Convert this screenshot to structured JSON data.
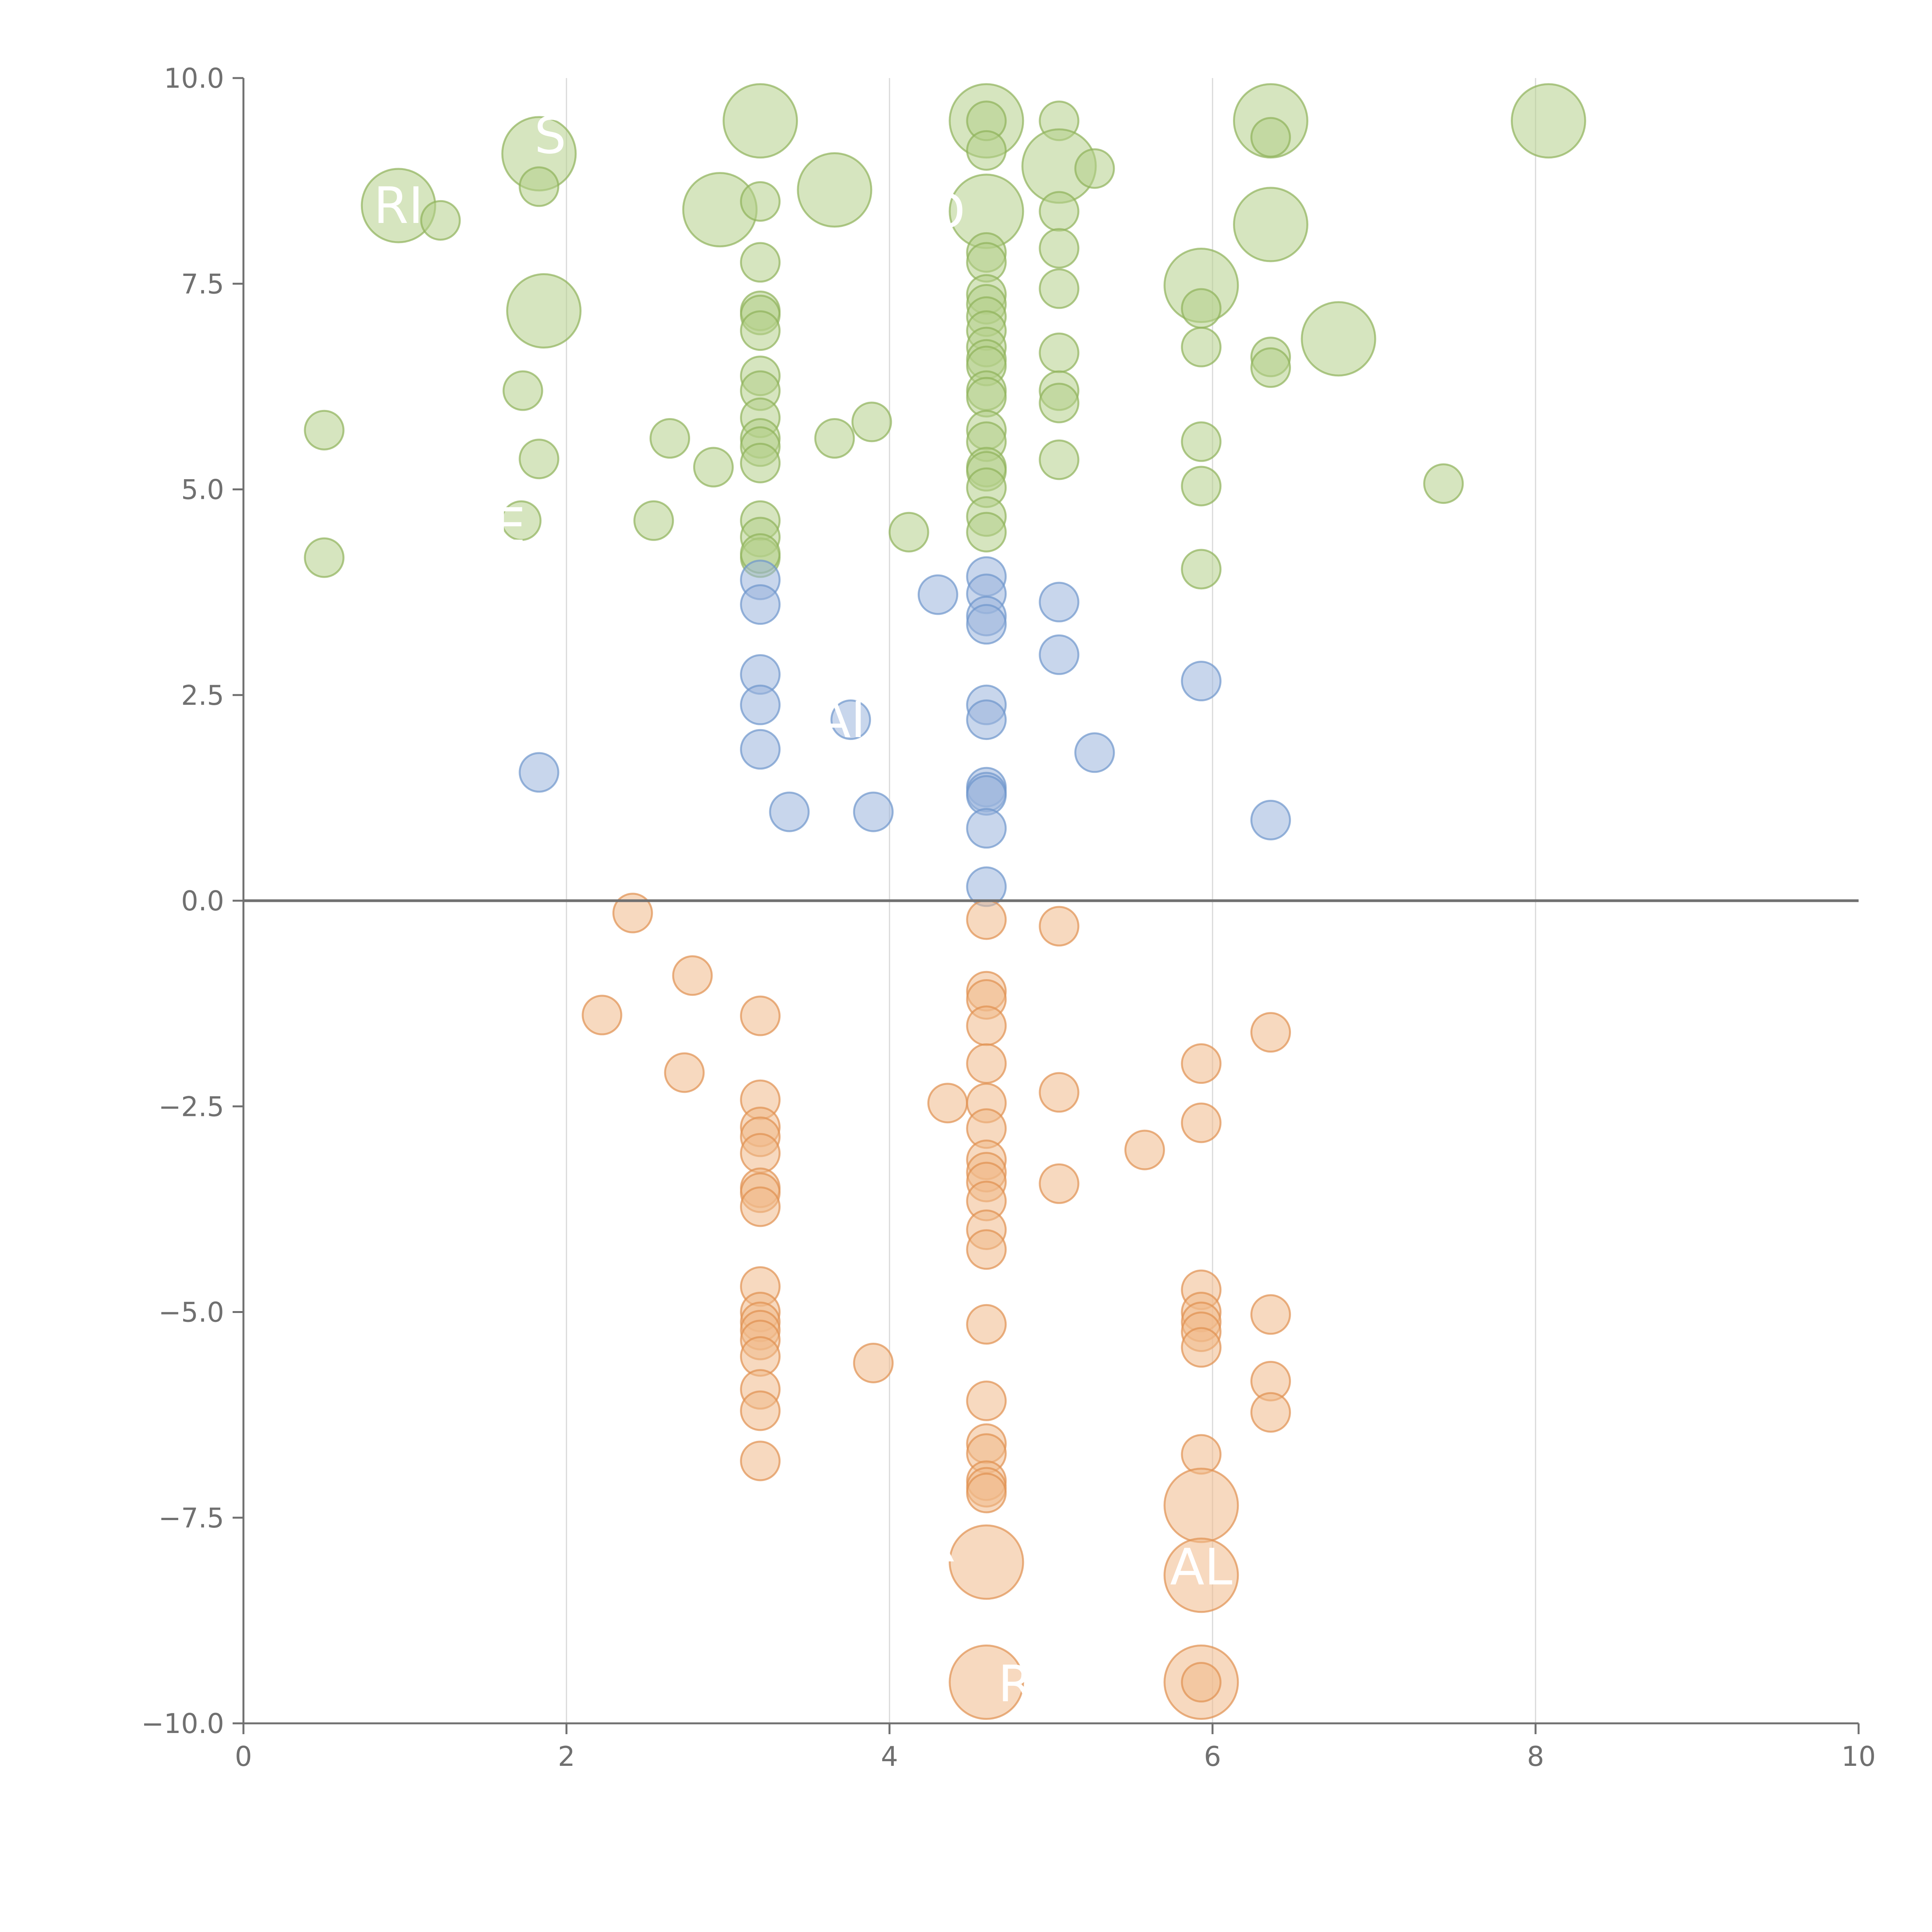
{
  "chart_data": {
    "type": "scatter",
    "title": "",
    "xlabel": "",
    "ylabel": "",
    "xlim": [
      0,
      10
    ],
    "ylim": [
      -10,
      10
    ],
    "grid": {
      "x": true,
      "y": false
    },
    "zero_line": true,
    "x_ticks": [
      "0",
      "2",
      "4",
      "6",
      "8",
      "10"
    ],
    "y_ticks": [
      "10.0",
      "7.5",
      "5.0",
      "2.5",
      "0.0",
      "−2.5",
      "−5.0",
      "−7.5",
      "−10.0"
    ],
    "x_tick_values": [
      0,
      2,
      4,
      6,
      8,
      10
    ],
    "y_tick_values": [
      10,
      7.5,
      5,
      2.5,
      0,
      -2.5,
      -5,
      -7.5,
      -10
    ],
    "colors": {
      "green_fill": "#b5cf8a",
      "green_stroke": "#8fb25a",
      "blue_fill": "#9ab5dc",
      "blue_stroke": "#6e95cc",
      "orange_fill": "#f0b98a",
      "orange_stroke": "#e09050"
    },
    "series": [
      {
        "color": "green",
        "points": [
          [
            0.96,
            8.45,
            "L"
          ],
          [
            1.22,
            8.27,
            "S"
          ],
          [
            1.83,
            9.08,
            "L"
          ],
          [
            1.83,
            8.68,
            "S"
          ],
          [
            1.86,
            7.17,
            "L"
          ],
          [
            0.5,
            5.72,
            "S"
          ],
          [
            1.73,
            6.2,
            "S"
          ],
          [
            1.83,
            5.37,
            "S"
          ],
          [
            0.5,
            4.17,
            "S"
          ],
          [
            1.72,
            4.62,
            "S"
          ],
          [
            2.54,
            4.62,
            "S"
          ],
          [
            2.64,
            5.62,
            "S"
          ],
          [
            2.91,
            5.27,
            "S"
          ],
          [
            2.95,
            8.4,
            "L"
          ],
          [
            3.2,
            9.48,
            "L"
          ],
          [
            3.2,
            8.5,
            "S"
          ],
          [
            3.2,
            7.76,
            "S"
          ],
          [
            3.2,
            7.17,
            "S"
          ],
          [
            3.2,
            7.12,
            "S"
          ],
          [
            3.2,
            6.93,
            "S"
          ],
          [
            3.2,
            6.38,
            "S"
          ],
          [
            3.2,
            6.2,
            "S"
          ],
          [
            3.2,
            5.87,
            "S"
          ],
          [
            3.2,
            5.62,
            "S"
          ],
          [
            3.2,
            5.52,
            "S"
          ],
          [
            3.2,
            5.32,
            "S"
          ],
          [
            3.2,
            4.62,
            "S"
          ],
          [
            3.2,
            4.42,
            "S"
          ],
          [
            3.2,
            4.17,
            "S"
          ],
          [
            3.2,
            4.22,
            "S"
          ],
          [
            3.66,
            8.64,
            "L"
          ],
          [
            3.66,
            5.62,
            "S"
          ],
          [
            3.89,
            5.82,
            "S"
          ],
          [
            4.12,
            4.48,
            "S"
          ],
          [
            4.6,
            9.48,
            "L"
          ],
          [
            4.6,
            9.48,
            "S"
          ],
          [
            4.6,
            9.12,
            "S"
          ],
          [
            4.6,
            8.38,
            "L"
          ],
          [
            4.6,
            7.88,
            "S"
          ],
          [
            4.6,
            7.76,
            "S"
          ],
          [
            4.6,
            7.37,
            "S"
          ],
          [
            4.6,
            7.25,
            "S"
          ],
          [
            4.6,
            7.1,
            "S"
          ],
          [
            4.6,
            6.93,
            "S"
          ],
          [
            4.6,
            6.73,
            "S"
          ],
          [
            4.6,
            6.58,
            "S"
          ],
          [
            4.6,
            6.5,
            "S"
          ],
          [
            4.6,
            6.2,
            "S"
          ],
          [
            4.6,
            6.12,
            "S"
          ],
          [
            4.6,
            5.72,
            "S"
          ],
          [
            4.6,
            5.58,
            "S"
          ],
          [
            4.6,
            5.27,
            "S"
          ],
          [
            4.6,
            5.22,
            "S"
          ],
          [
            4.6,
            5.02,
            "S"
          ],
          [
            4.6,
            4.67,
            "S"
          ],
          [
            4.6,
            4.48,
            "S"
          ],
          [
            5.05,
            9.48,
            "S"
          ],
          [
            5.05,
            8.93,
            "L"
          ],
          [
            5.05,
            8.38,
            "S"
          ],
          [
            5.05,
            7.93,
            "S"
          ],
          [
            5.05,
            7.44,
            "S"
          ],
          [
            5.05,
            6.66,
            "S"
          ],
          [
            5.05,
            6.2,
            "S"
          ],
          [
            5.05,
            6.05,
            "S"
          ],
          [
            5.05,
            5.36,
            "S"
          ],
          [
            5.27,
            8.9,
            "S"
          ],
          [
            5.93,
            7.48,
            "L"
          ],
          [
            5.93,
            7.2,
            "S"
          ],
          [
            5.93,
            6.73,
            "S"
          ],
          [
            5.93,
            5.58,
            "S"
          ],
          [
            5.93,
            5.04,
            "S"
          ],
          [
            5.93,
            4.03,
            "S"
          ],
          [
            6.36,
            9.48,
            "L"
          ],
          [
            6.36,
            9.28,
            "S"
          ],
          [
            6.36,
            8.22,
            "L"
          ],
          [
            6.36,
            6.61,
            "S"
          ],
          [
            6.36,
            6.48,
            "S"
          ],
          [
            6.78,
            6.83,
            "L"
          ],
          [
            7.43,
            5.07,
            "S"
          ],
          [
            8.08,
            9.48,
            "L"
          ]
        ]
      },
      {
        "color": "blue",
        "points": [
          [
            1.83,
            1.56,
            "S"
          ],
          [
            3.2,
            3.9,
            "S"
          ],
          [
            3.2,
            3.6,
            "S"
          ],
          [
            3.2,
            2.75,
            "S"
          ],
          [
            3.2,
            2.38,
            "S"
          ],
          [
            3.2,
            1.84,
            "S"
          ],
          [
            3.38,
            1.08,
            "S"
          ],
          [
            3.76,
            2.2,
            "S"
          ],
          [
            3.9,
            1.08,
            "S"
          ],
          [
            4.3,
            3.72,
            "S"
          ],
          [
            4.6,
            3.94,
            "S"
          ],
          [
            4.6,
            3.73,
            "S"
          ],
          [
            4.6,
            3.46,
            "S"
          ],
          [
            4.6,
            3.36,
            "S"
          ],
          [
            4.6,
            2.38,
            "S"
          ],
          [
            4.6,
            2.2,
            "S"
          ],
          [
            4.6,
            1.38,
            "S"
          ],
          [
            4.6,
            1.32,
            "S"
          ],
          [
            4.6,
            1.28,
            "S"
          ],
          [
            4.6,
            0.88,
            "S"
          ],
          [
            4.6,
            0.17,
            "S"
          ],
          [
            5.05,
            3.63,
            "S"
          ],
          [
            5.05,
            2.99,
            "S"
          ],
          [
            5.27,
            1.8,
            "S"
          ],
          [
            5.93,
            2.67,
            "S"
          ],
          [
            6.36,
            0.98,
            "S"
          ]
        ]
      },
      {
        "color": "orange",
        "points": [
          [
            2.41,
            -0.15,
            "S"
          ],
          [
            2.78,
            -0.91,
            "S"
          ],
          [
            2.22,
            -1.39,
            "S"
          ],
          [
            2.73,
            -2.09,
            "S"
          ],
          [
            3.2,
            -1.4,
            "S"
          ],
          [
            3.2,
            -2.42,
            "S"
          ],
          [
            3.2,
            -2.75,
            "S"
          ],
          [
            3.2,
            -2.87,
            "S"
          ],
          [
            3.2,
            -3.07,
            "S"
          ],
          [
            3.2,
            -3.49,
            "S"
          ],
          [
            3.2,
            -3.55,
            "S"
          ],
          [
            3.2,
            -3.72,
            "S"
          ],
          [
            3.2,
            -4.69,
            "S"
          ],
          [
            3.2,
            -5.0,
            "S"
          ],
          [
            3.2,
            -5.12,
            "S"
          ],
          [
            3.2,
            -5.22,
            "S"
          ],
          [
            3.2,
            -5.34,
            "S"
          ],
          [
            3.2,
            -5.54,
            "S"
          ],
          [
            3.2,
            -5.94,
            "S"
          ],
          [
            3.2,
            -6.2,
            "S"
          ],
          [
            3.2,
            -6.81,
            "S"
          ],
          [
            3.9,
            -5.62,
            "S"
          ],
          [
            4.36,
            -2.46,
            "S"
          ],
          [
            4.6,
            -0.23,
            "S"
          ],
          [
            4.6,
            -1.1,
            "S"
          ],
          [
            4.6,
            -1.2,
            "S"
          ],
          [
            4.6,
            -1.52,
            "S"
          ],
          [
            4.6,
            -1.98,
            "S"
          ],
          [
            4.6,
            -2.46,
            "S"
          ],
          [
            4.6,
            -2.77,
            "S"
          ],
          [
            4.6,
            -3.15,
            "S"
          ],
          [
            4.6,
            -3.3,
            "S"
          ],
          [
            4.6,
            -3.42,
            "S"
          ],
          [
            4.6,
            -3.65,
            "S"
          ],
          [
            4.6,
            -4.0,
            "S"
          ],
          [
            4.6,
            -4.24,
            "S"
          ],
          [
            4.6,
            -5.15,
            "S"
          ],
          [
            4.6,
            -6.08,
            "S"
          ],
          [
            4.6,
            -6.6,
            "S"
          ],
          [
            4.6,
            -6.72,
            "S"
          ],
          [
            4.6,
            -7.05,
            "S"
          ],
          [
            4.6,
            -7.13,
            "S"
          ],
          [
            4.6,
            -7.2,
            "S"
          ],
          [
            4.6,
            -8.04,
            "L"
          ],
          [
            4.6,
            -9.5,
            "L"
          ],
          [
            5.05,
            -0.31,
            "S"
          ],
          [
            5.05,
            -2.33,
            "S"
          ],
          [
            5.05,
            -3.44,
            "S"
          ],
          [
            5.58,
            -3.03,
            "S"
          ],
          [
            5.93,
            -1.98,
            "S"
          ],
          [
            5.93,
            -2.7,
            "S"
          ],
          [
            5.93,
            -4.73,
            "S"
          ],
          [
            5.93,
            -5.0,
            "S"
          ],
          [
            5.93,
            -5.12,
            "S"
          ],
          [
            5.93,
            -5.24,
            "S"
          ],
          [
            5.93,
            -5.43,
            "S"
          ],
          [
            5.93,
            -6.73,
            "S"
          ],
          [
            5.93,
            -7.35,
            "L"
          ],
          [
            5.93,
            -8.2,
            "L"
          ],
          [
            5.93,
            -9.5,
            "L"
          ],
          [
            5.93,
            -9.5,
            "S"
          ],
          [
            6.36,
            -1.6,
            "S"
          ],
          [
            6.36,
            -5.03,
            "S"
          ],
          [
            6.36,
            -5.84,
            "S"
          ],
          [
            6.36,
            -6.22,
            "S"
          ]
        ]
      }
    ],
    "labels": [
      {
        "text": "RI",
        "x": 0.96,
        "y": 8.45
      },
      {
        "text": "S",
        "x": 1.9,
        "y": 9.3
      },
      {
        "text": "D",
        "x": 4.35,
        "y": 8.38
      },
      {
        "text": "E",
        "x": 1.65,
        "y": 4.55
      },
      {
        "text": "AI",
        "x": 3.7,
        "y": 2.2
      },
      {
        "text": "R",
        "x": 4.3,
        "y": -7.82
      },
      {
        "text": "AL",
        "x": 5.93,
        "y": -8.1
      },
      {
        "text": "R",
        "x": 4.78,
        "y": -9.52
      }
    ]
  }
}
